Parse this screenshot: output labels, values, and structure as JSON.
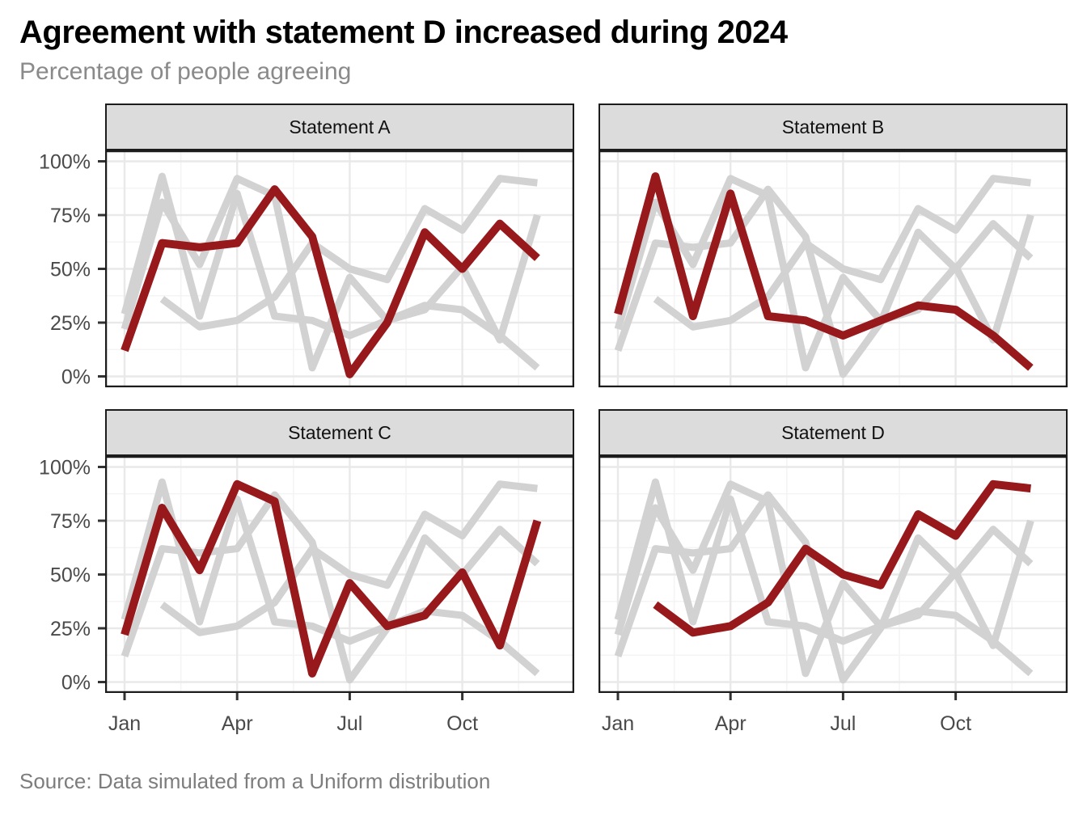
{
  "header": {
    "title": "Agreement with statement D increased during 2024",
    "subtitle": "Percentage of people agreeing"
  },
  "caption": "Source: Data simulated from a Uniform distribution",
  "colors": {
    "highlight_line": "#97191c",
    "other_lines": "#d2d2d2",
    "strip_background": "#dcdcdc",
    "panel_border": "#1c1c1c",
    "grid_major": "#e9e9e9",
    "grid_minor": "#f4f4f4",
    "axis_text": "#4a4a4a",
    "tick_mark": "#333333",
    "title_text": "#000000",
    "subtitle_text": "#8a8a8a",
    "caption_text": "#7d7d7d"
  },
  "chart_data": {
    "type": "line",
    "title": "Agreement with statement D increased during 2024",
    "subtitle": "Percentage of people agreeing",
    "caption": "Source: Data simulated from a Uniform distribution",
    "x": [
      "Jan",
      "Feb",
      "Mar",
      "Apr",
      "May",
      "Jun",
      "Jul",
      "Aug",
      "Sep",
      "Oct",
      "Nov",
      "Dec"
    ],
    "xlabel": "",
    "ylabel": "",
    "unit": "%",
    "ylim": [
      0,
      100
    ],
    "y_major_ticks": [
      0,
      25,
      50,
      75,
      100
    ],
    "y_minor_ticks": [
      12.5,
      37.5,
      62.5,
      87.5
    ],
    "y_tick_labels": [
      "0%",
      "25%",
      "50%",
      "75%",
      "100%"
    ],
    "x_tick_labels": [
      "Jan",
      "Apr",
      "Jul",
      "Oct"
    ],
    "x_major_tick_indices": [
      0,
      3,
      6,
      9
    ],
    "x_minor_tick_positions": [
      1.5,
      4.5,
      7.5,
      10.5
    ],
    "grid": "on",
    "legend_position": "none",
    "facets": [
      {
        "label": "Statement A",
        "highlight_series": "Statement A"
      },
      {
        "label": "Statement B",
        "highlight_series": "Statement B"
      },
      {
        "label": "Statement C",
        "highlight_series": "Statement C"
      },
      {
        "label": "Statement D",
        "highlight_series": "Statement D"
      }
    ],
    "series": [
      {
        "name": "Statement A",
        "values": [
          12,
          62,
          60,
          62,
          87,
          65,
          1,
          25,
          67,
          50,
          71,
          55
        ]
      },
      {
        "name": "Statement B",
        "values": [
          29,
          93,
          28,
          85,
          28,
          26,
          19,
          26,
          33,
          31,
          19,
          4
        ]
      },
      {
        "name": "Statement C",
        "values": [
          22,
          81,
          52,
          92,
          84,
          4,
          46,
          26,
          31,
          51,
          17,
          75
        ]
      },
      {
        "name": "Statement D",
        "values": [
          null,
          36,
          23,
          26,
          37,
          62,
          50,
          45,
          78,
          68,
          92,
          90
        ]
      }
    ]
  }
}
